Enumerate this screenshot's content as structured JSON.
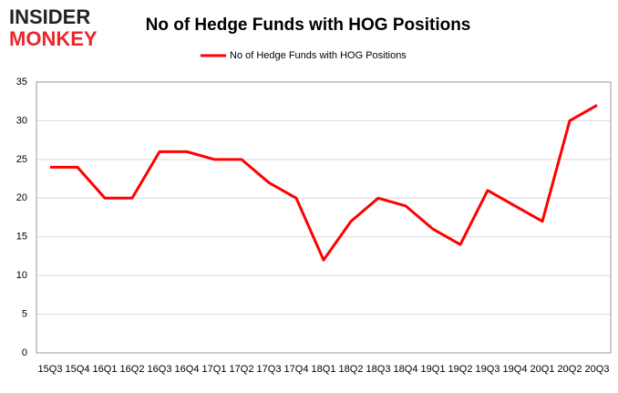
{
  "logo": {
    "line1": "INSIDER",
    "line2": "MONKEY"
  },
  "chart_data": {
    "type": "line",
    "title": "No of Hedge Funds with HOG Positions",
    "categories": [
      "15Q3",
      "15Q4",
      "16Q1",
      "16Q2",
      "16Q3",
      "16Q4",
      "17Q1",
      "17Q2",
      "17Q3",
      "17Q4",
      "18Q1",
      "18Q2",
      "18Q3",
      "18Q4",
      "19Q1",
      "19Q2",
      "19Q3",
      "19Q4",
      "20Q1",
      "20Q2",
      "20Q3"
    ],
    "series": [
      {
        "name": "No of Hedge Funds with HOG Positions",
        "color": "#ff0000",
        "values": [
          24,
          24,
          20,
          20,
          26,
          26,
          25,
          25,
          22,
          20,
          12,
          17,
          20,
          19,
          16,
          14,
          21,
          19,
          17,
          30,
          32
        ]
      }
    ],
    "ylim": [
      0,
      35
    ],
    "yticks": [
      0,
      5,
      10,
      15,
      20,
      25,
      30,
      35
    ],
    "grid": true,
    "legend": "top"
  }
}
